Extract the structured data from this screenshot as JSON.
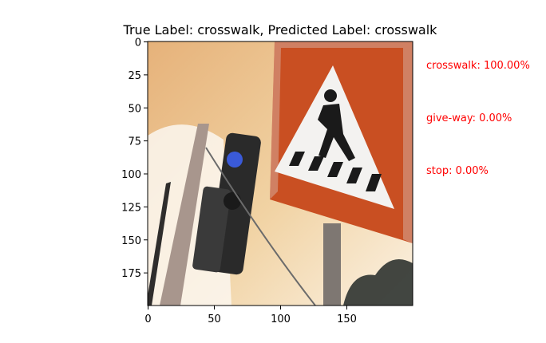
{
  "chart_data": {
    "type": "image",
    "title": "True Label: crosswalk, Predicted Label: crosswalk",
    "true_label": "crosswalk",
    "predicted_label": "crosswalk",
    "image_content": "photo of a crosswalk road sign next to a traffic light",
    "x_ticks": [
      0,
      50,
      100,
      150
    ],
    "y_ticks": [
      0,
      25,
      50,
      75,
      100,
      125,
      150,
      175
    ],
    "x_range": [
      0,
      200
    ],
    "y_range": [
      0,
      200
    ],
    "predictions": [
      {
        "label": "crosswalk",
        "probability": 100.0,
        "text": "crosswalk: 100.00%"
      },
      {
        "label": "give-way",
        "probability": 0.0,
        "text": "give-way: 0.00%"
      },
      {
        "label": "stop",
        "probability": 0.0,
        "text": "stop: 0.00%"
      }
    ],
    "colors": {
      "prediction_text": "#ff0000",
      "axes": "#000000"
    }
  }
}
